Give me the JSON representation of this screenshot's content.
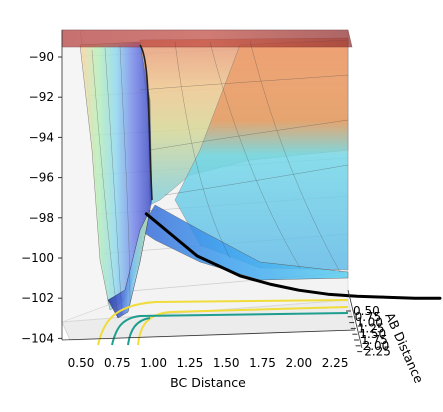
{
  "chart_data": {
    "type": "surface3d",
    "title": "",
    "xlabel": "BC Distance",
    "ylabel": "AB Distance",
    "zlabel": "",
    "x_ticks": [
      "0.50",
      "0.75",
      "1.00",
      "1.25",
      "1.50",
      "1.75",
      "2.00",
      "2.25"
    ],
    "y_ticks": [
      "0.50",
      "0.75",
      "1.00",
      "1.25",
      "1.50",
      "1.75",
      "2.00",
      "2.25"
    ],
    "z_ticks": [
      "−90",
      "−92",
      "−94",
      "−96",
      "−98",
      "−100",
      "−102",
      "−104"
    ],
    "x_range": [
      0.4,
      2.4
    ],
    "y_range": [
      0.5,
      2.3
    ],
    "z_range": [
      -104,
      -90
    ],
    "grid": true,
    "colormap": "jet",
    "surface_alpha": 0.5,
    "contour_levels_projected": [
      "yellow",
      "teal"
    ],
    "trajectory": {
      "color": "#000000",
      "description_label": "",
      "x": [
        0.95,
        1.0,
        1.1,
        1.2,
        1.3,
        1.45,
        1.6,
        1.8,
        2.0,
        2.2,
        2.4,
        2.6,
        2.8,
        3.0
      ],
      "z": [
        -97.8,
        -98.1,
        -98.7,
        -99.3,
        -99.9,
        -100.4,
        -100.9,
        -101.3,
        -101.6,
        -101.8,
        -101.9,
        -101.95,
        -102.0,
        -102.0
      ]
    }
  }
}
